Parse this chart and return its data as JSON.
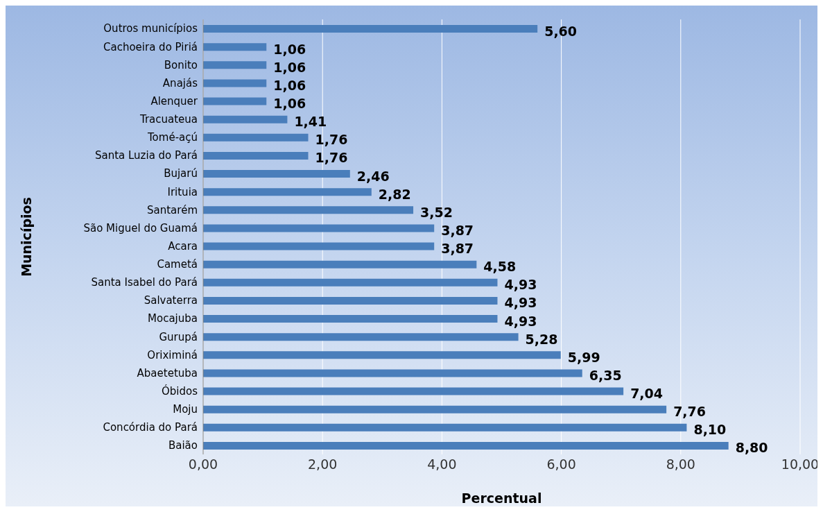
{
  "chart_data": {
    "type": "bar",
    "orientation": "horizontal",
    "xlabel": "Percentual",
    "ylabel": "Municípios",
    "categories": [
      "Outros municípios",
      "Cachoeira do Piriá",
      "Bonito",
      "Anajás",
      "Alenquer",
      "Tracuateua",
      "Tomé-açú",
      "Santa Luzia do Pará",
      "Bujarú",
      "Irituia",
      "Santarém",
      "São Miguel do Guamá",
      "Acara",
      "Cametá",
      "Santa Isabel do Pará",
      "Salvaterra",
      "Mocajuba",
      "Gurupá",
      "Oriximiná",
      "Abaetetuba",
      "Óbidos",
      "Moju",
      "Concórdia do Pará",
      "Baião"
    ],
    "values": [
      5.6,
      1.06,
      1.06,
      1.06,
      1.06,
      1.41,
      1.76,
      1.76,
      2.46,
      2.82,
      3.52,
      3.87,
      3.87,
      4.58,
      4.93,
      4.93,
      4.93,
      5.28,
      5.99,
      6.35,
      7.04,
      7.76,
      8.1,
      8.8
    ],
    "value_labels": [
      "5,60",
      "1,06",
      "1,06",
      "1,06",
      "1,06",
      "1,41",
      "1,76",
      "1,76",
      "2,46",
      "2,82",
      "3,52",
      "3,87",
      "3,87",
      "4,58",
      "4,93",
      "4,93",
      "4,93",
      "5,28",
      "5,99",
      "6,35",
      "7,04",
      "7,76",
      "8,10",
      "8,80"
    ],
    "color": "#4a7ebb",
    "xlim": [
      0,
      10
    ],
    "xticks": [
      {
        "value": 0,
        "label": "0,00"
      },
      {
        "value": 2,
        "label": "2,00"
      },
      {
        "value": 4,
        "label": "4,00"
      },
      {
        "value": 6,
        "label": "6,00"
      },
      {
        "value": 8,
        "label": "8,00"
      },
      {
        "value": 10,
        "label": "10,00"
      }
    ],
    "grid": "x"
  }
}
